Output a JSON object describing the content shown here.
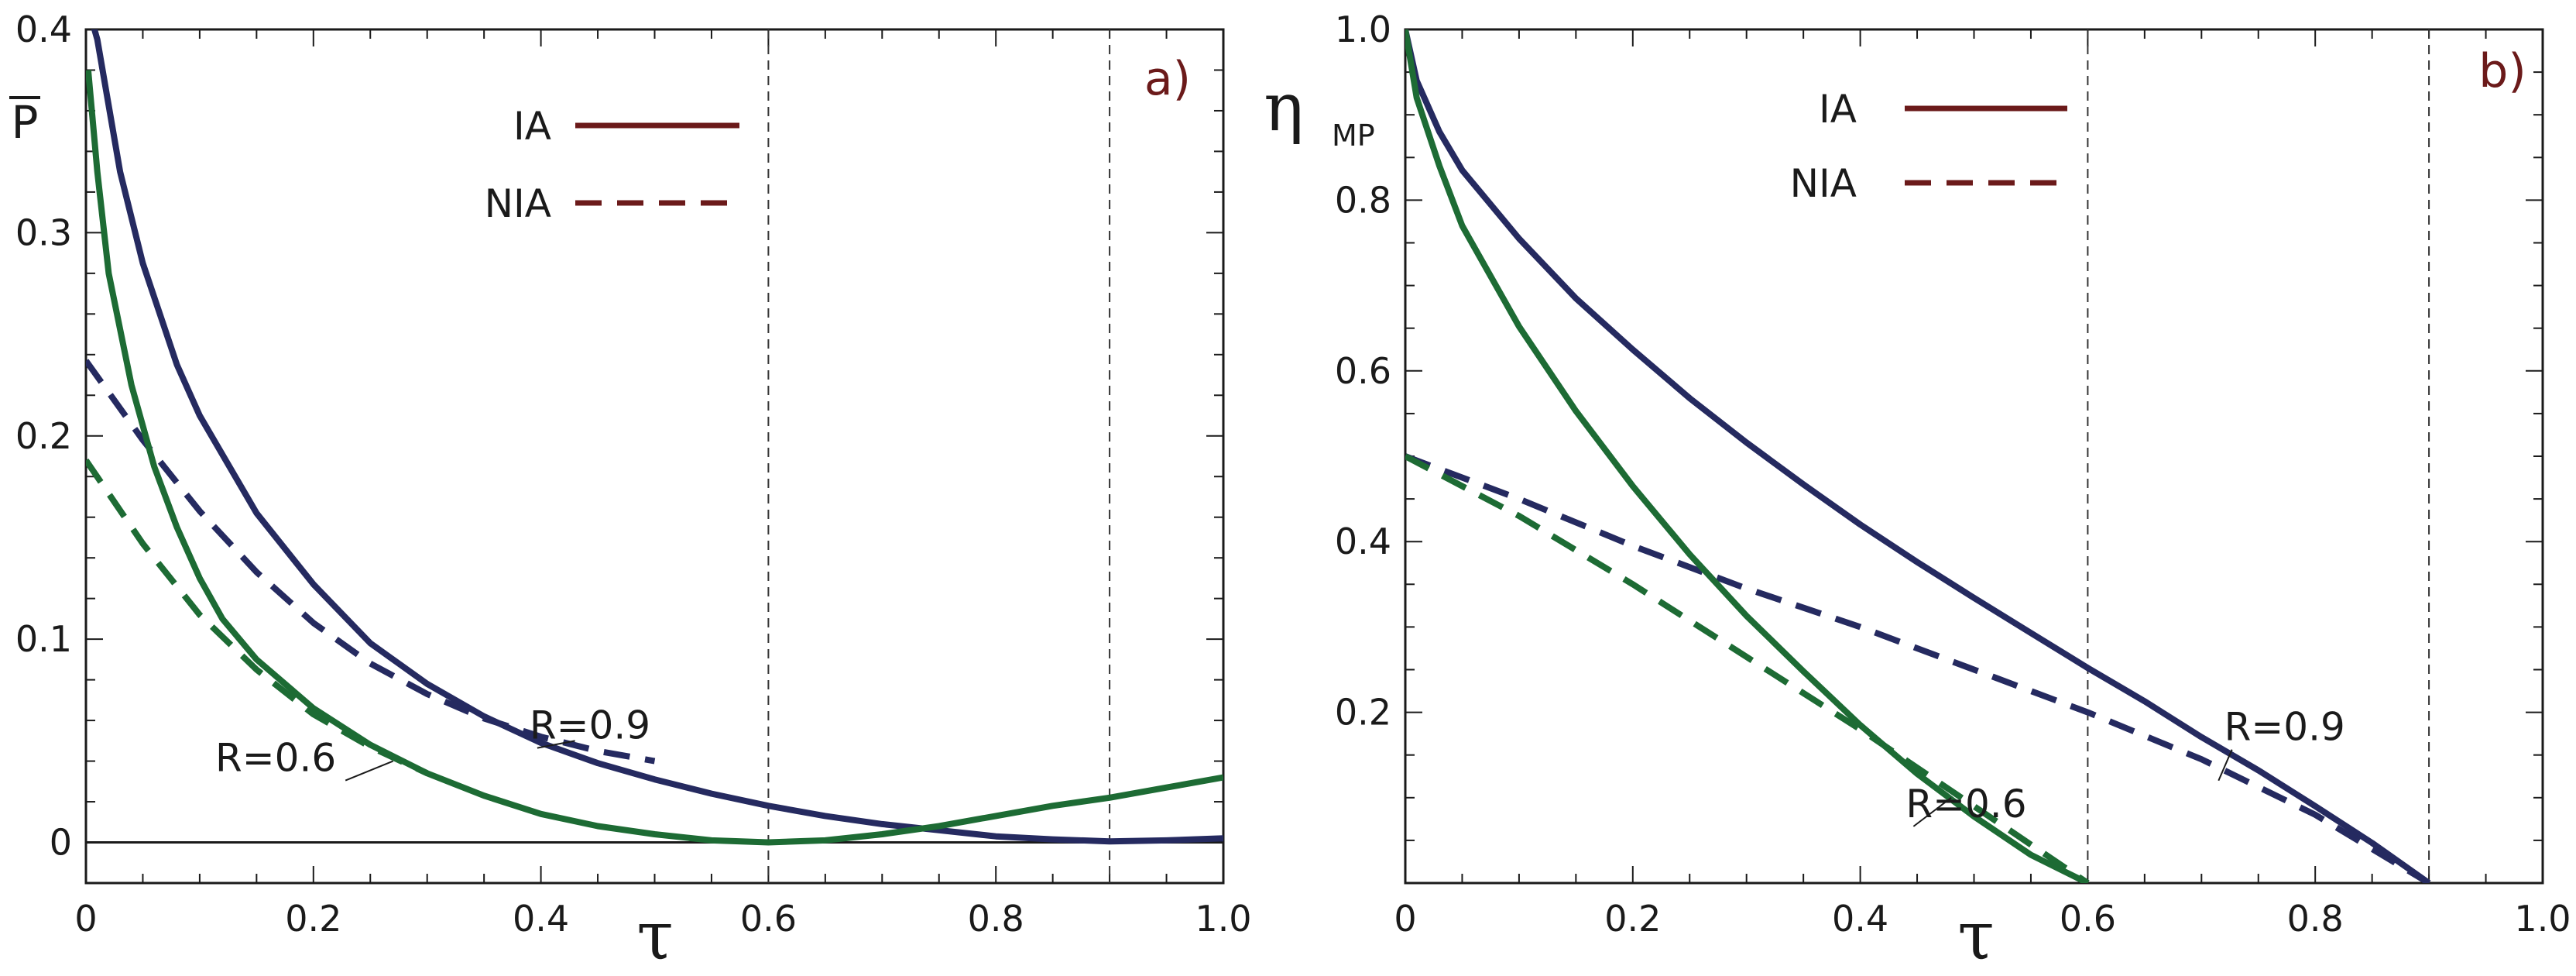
{
  "colors": {
    "blue": "#252a60",
    "green": "#1d6b34",
    "legend": "#6b1a1a",
    "axis": "#1a1a1a",
    "grid": "#333333"
  },
  "chart_data": [
    {
      "type": "line",
      "panel_label": "a)",
      "ylabel": "P",
      "xlabel": "τ",
      "xlim": [
        0,
        1.0
      ],
      "ylim": [
        -0.02,
        0.4
      ],
      "xticks": [
        0,
        0.2,
        0.4,
        0.6,
        0.8,
        1.0
      ],
      "xtick_labels": [
        "0",
        "0.2",
        "0.4",
        "0.6",
        "0.8",
        "1.0"
      ],
      "yticks": [
        0,
        0.1,
        0.2,
        0.3,
        0.4
      ],
      "ytick_labels": [
        "0",
        "0.1",
        "0.2",
        "0.3",
        "0.4"
      ],
      "vlines": [
        0.6,
        0.9
      ],
      "hline": 0,
      "legend": [
        {
          "label": "IA",
          "style": "solid"
        },
        {
          "label": "NIA",
          "style": "dashed"
        }
      ],
      "annotations": [
        {
          "text": "R=0.9",
          "at": [
            0.39,
            0.048
          ],
          "point": [
            0.43,
            0.05
          ]
        },
        {
          "text": "R=0.6",
          "at": [
            0.22,
            0.032
          ],
          "point": [
            0.27,
            0.04
          ]
        }
      ],
      "series": [
        {
          "name": "IA, R=0.9",
          "style": "solid",
          "color": "blue",
          "x": [
            0.005,
            0.01,
            0.03,
            0.05,
            0.08,
            0.1,
            0.15,
            0.2,
            0.25,
            0.3,
            0.35,
            0.4,
            0.45,
            0.5,
            0.55,
            0.6,
            0.65,
            0.7,
            0.75,
            0.8,
            0.85,
            0.9,
            0.95,
            1.0
          ],
          "y": [
            0.405,
            0.395,
            0.33,
            0.285,
            0.235,
            0.21,
            0.162,
            0.127,
            0.098,
            0.078,
            0.062,
            0.049,
            0.039,
            0.031,
            0.024,
            0.018,
            0.013,
            0.009,
            0.006,
            0.003,
            0.0015,
            0.0005,
            0.001,
            0.002
          ]
        },
        {
          "name": "NIA, R=0.9",
          "style": "dashed",
          "color": "blue",
          "x": [
            0,
            0.05,
            0.1,
            0.15,
            0.2,
            0.25,
            0.3,
            0.35,
            0.4,
            0.45,
            0.5
          ],
          "y": [
            0.237,
            0.198,
            0.163,
            0.133,
            0.108,
            0.088,
            0.073,
            0.061,
            0.052,
            0.045,
            0.04
          ]
        },
        {
          "name": "IA, R=0.6",
          "style": "solid",
          "color": "green",
          "x": [
            0.002,
            0.01,
            0.02,
            0.04,
            0.06,
            0.08,
            0.1,
            0.12,
            0.15,
            0.2,
            0.25,
            0.3,
            0.35,
            0.4,
            0.45,
            0.5,
            0.55,
            0.6,
            0.65,
            0.7,
            0.75,
            0.8,
            0.85,
            0.9,
            0.95,
            1.0
          ],
          "y": [
            0.38,
            0.33,
            0.28,
            0.225,
            0.185,
            0.155,
            0.13,
            0.11,
            0.09,
            0.066,
            0.048,
            0.034,
            0.023,
            0.014,
            0.008,
            0.004,
            0.001,
            0.0,
            0.001,
            0.004,
            0.008,
            0.013,
            0.018,
            0.022,
            0.027,
            0.032
          ]
        },
        {
          "name": "NIA, R=0.6",
          "style": "dashed",
          "color": "green",
          "x": [
            0,
            0.05,
            0.1,
            0.15,
            0.2,
            0.25,
            0.3
          ],
          "y": [
            0.188,
            0.147,
            0.112,
            0.085,
            0.063,
            0.047,
            0.034
          ]
        }
      ]
    },
    {
      "type": "line",
      "panel_label": "b)",
      "ylabel": "η",
      "ylabel_sub": "MP",
      "xlabel": "τ",
      "xlim": [
        0,
        1.0
      ],
      "ylim": [
        0,
        1.0
      ],
      "xticks": [
        0,
        0.2,
        0.4,
        0.6,
        0.8,
        1.0
      ],
      "xtick_labels": [
        "0",
        "0.2",
        "0.4",
        "0.6",
        "0.8",
        "1.0"
      ],
      "yticks": [
        0.2,
        0.4,
        0.6,
        0.8,
        1.0
      ],
      "ytick_labels": [
        "0.2",
        "0.4",
        "0.6",
        "0.8",
        "1.0"
      ],
      "vlines": [
        0.6,
        0.9
      ],
      "legend": [
        {
          "label": "IA",
          "style": "solid"
        },
        {
          "label": "NIA",
          "style": "dashed"
        }
      ],
      "annotations": [
        {
          "text": "R=0.9",
          "at": [
            0.72,
            0.16
          ],
          "point": [
            0.715,
            0.12
          ]
        },
        {
          "text": "R=0.6",
          "at": [
            0.44,
            0.07
          ],
          "point": [
            0.48,
            0.1
          ]
        }
      ],
      "series": [
        {
          "name": "IA, R=0.9",
          "style": "solid",
          "color": "blue",
          "x": [
            0,
            0.01,
            0.03,
            0.05,
            0.1,
            0.15,
            0.2,
            0.25,
            0.3,
            0.35,
            0.4,
            0.45,
            0.5,
            0.55,
            0.6,
            0.65,
            0.7,
            0.75,
            0.8,
            0.85,
            0.9
          ],
          "y": [
            1.0,
            0.94,
            0.88,
            0.835,
            0.755,
            0.685,
            0.625,
            0.568,
            0.516,
            0.467,
            0.42,
            0.376,
            0.334,
            0.293,
            0.252,
            0.213,
            0.171,
            0.132,
            0.09,
            0.047,
            0.0
          ]
        },
        {
          "name": "NIA, R=0.9",
          "style": "dashed",
          "color": "blue",
          "x": [
            0,
            0.1,
            0.2,
            0.3,
            0.4,
            0.5,
            0.6,
            0.7,
            0.8,
            0.9
          ],
          "y": [
            0.5,
            0.45,
            0.395,
            0.345,
            0.3,
            0.25,
            0.2,
            0.145,
            0.08,
            0.0
          ]
        },
        {
          "name": "IA, R=0.6",
          "style": "solid",
          "color": "green",
          "x": [
            0,
            0.01,
            0.03,
            0.05,
            0.1,
            0.15,
            0.2,
            0.25,
            0.3,
            0.35,
            0.4,
            0.45,
            0.5,
            0.55,
            0.6
          ],
          "y": [
            1.0,
            0.92,
            0.84,
            0.77,
            0.652,
            0.553,
            0.465,
            0.385,
            0.313,
            0.248,
            0.185,
            0.128,
            0.078,
            0.033,
            0.0
          ]
        },
        {
          "name": "NIA, R=0.6",
          "style": "dashed",
          "color": "green",
          "x": [
            0,
            0.1,
            0.2,
            0.3,
            0.4,
            0.5,
            0.6
          ],
          "y": [
            0.5,
            0.43,
            0.35,
            0.265,
            0.18,
            0.09,
            0.0
          ]
        }
      ]
    }
  ]
}
